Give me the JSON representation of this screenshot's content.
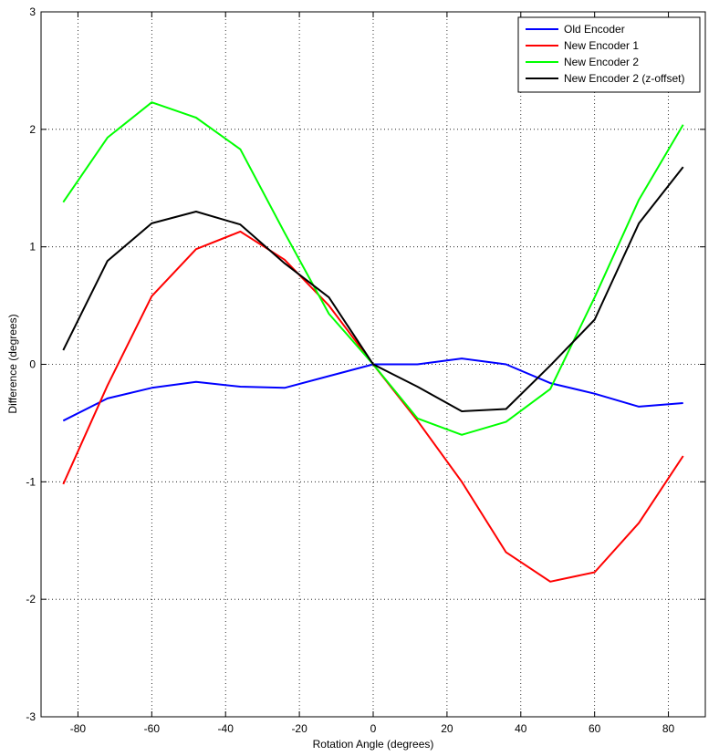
{
  "chart_data": {
    "type": "line",
    "title": "",
    "xlabel": "Rotation Angle (degrees)",
    "ylabel": "Difference (degrees)",
    "xlim": [
      -90,
      90
    ],
    "ylim": [
      -3,
      3
    ],
    "xticks": [
      -80,
      -60,
      -40,
      -20,
      0,
      20,
      40,
      60,
      80
    ],
    "yticks": [
      -3,
      -2,
      -1,
      0,
      1,
      2,
      3
    ],
    "grid": true,
    "legend_position": "top-right",
    "x": [
      -84,
      -72,
      -60,
      -48,
      -36,
      -24,
      -12,
      0,
      12,
      24,
      36,
      48,
      60,
      72,
      84
    ],
    "series": [
      {
        "name": "Old Encoder",
        "color": "#0000ff",
        "values": [
          -0.48,
          -0.29,
          -0.2,
          -0.15,
          -0.19,
          -0.2,
          -0.1,
          0.0,
          0.0,
          0.05,
          0.0,
          -0.16,
          -0.25,
          -0.36,
          -0.33
        ]
      },
      {
        "name": "New Encoder 1",
        "color": "#ff0000",
        "values": [
          -1.02,
          -0.18,
          0.58,
          0.98,
          1.13,
          0.89,
          0.5,
          0.0,
          -0.48,
          -1.0,
          -1.6,
          -1.85,
          -1.77,
          -1.35,
          -0.78
        ]
      },
      {
        "name": "New Encoder 2",
        "color": "#00ff00",
        "values": [
          1.38,
          1.93,
          2.23,
          2.1,
          1.83,
          1.12,
          0.43,
          0.0,
          -0.46,
          -0.6,
          -0.49,
          -0.21,
          0.57,
          1.4,
          2.04
        ]
      },
      {
        "name": "New Encoder 2 (z-offset)",
        "color": "#000000",
        "values": [
          0.12,
          0.88,
          1.2,
          1.3,
          1.19,
          0.86,
          0.57,
          0.0,
          -0.19,
          -0.4,
          -0.38,
          -0.01,
          0.38,
          1.2,
          1.68
        ]
      }
    ]
  }
}
